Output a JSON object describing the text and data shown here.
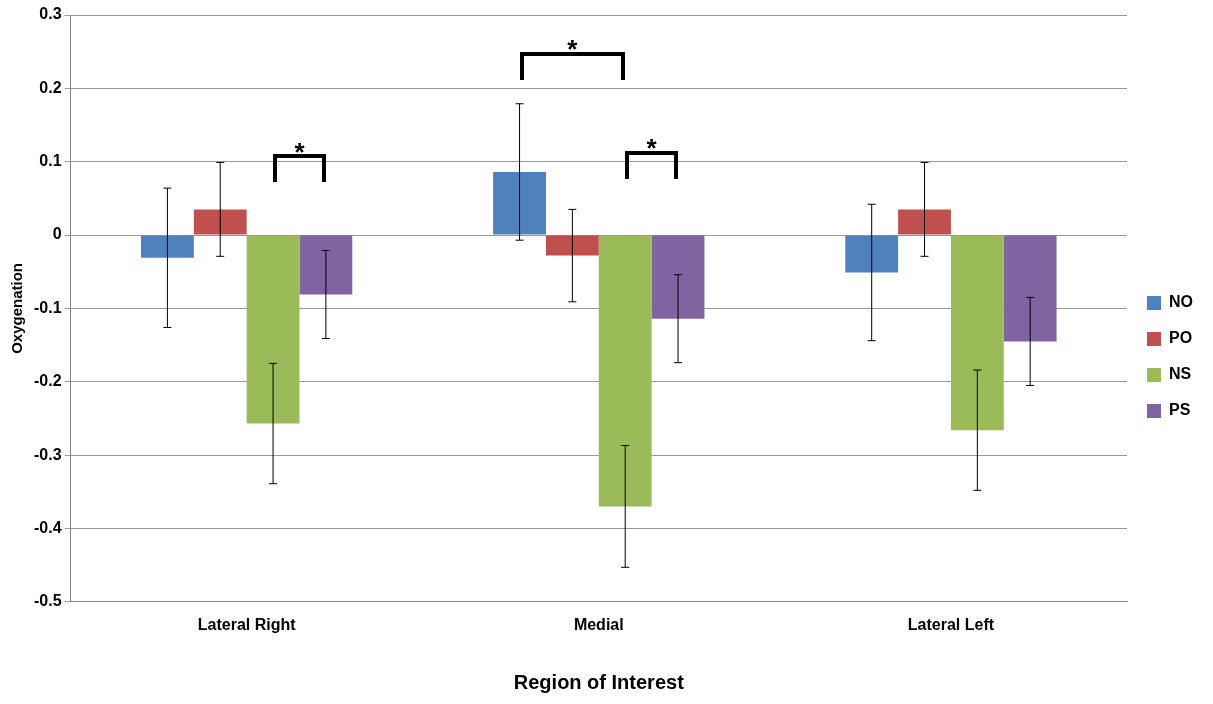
{
  "chart_data": {
    "type": "bar",
    "xlabel": "Region of Interest",
    "ylabel": "Oxygenation",
    "categories": [
      "Lateral Right",
      "Medial",
      "Lateral Left"
    ],
    "series": [
      {
        "name": "NO",
        "color": "#4f81bd",
        "values": [
          -0.031,
          0.086,
          -0.051
        ],
        "errors": [
          0.095,
          0.093,
          0.093
        ]
      },
      {
        "name": "PO",
        "color": "#c0504d",
        "values": [
          0.035,
          -0.028,
          0.035
        ],
        "errors": [
          0.064,
          0.063,
          0.064
        ]
      },
      {
        "name": "NS",
        "color": "#9bbb59",
        "values": [
          -0.257,
          -0.37,
          -0.266
        ],
        "errors": [
          0.082,
          0.083,
          0.082
        ]
      },
      {
        "name": "PS",
        "color": "#8064a2",
        "values": [
          -0.081,
          -0.114,
          -0.145
        ],
        "errors": [
          0.06,
          0.06,
          0.06
        ]
      }
    ],
    "ylim": [
      -0.5,
      0.3
    ],
    "yticks": [
      -0.5,
      -0.4,
      -0.3,
      -0.2,
      -0.1,
      0,
      0.1,
      0.2,
      0.3
    ],
    "grid": "y",
    "legend": "right",
    "annotations": [
      "*",
      "*",
      "*"
    ]
  }
}
